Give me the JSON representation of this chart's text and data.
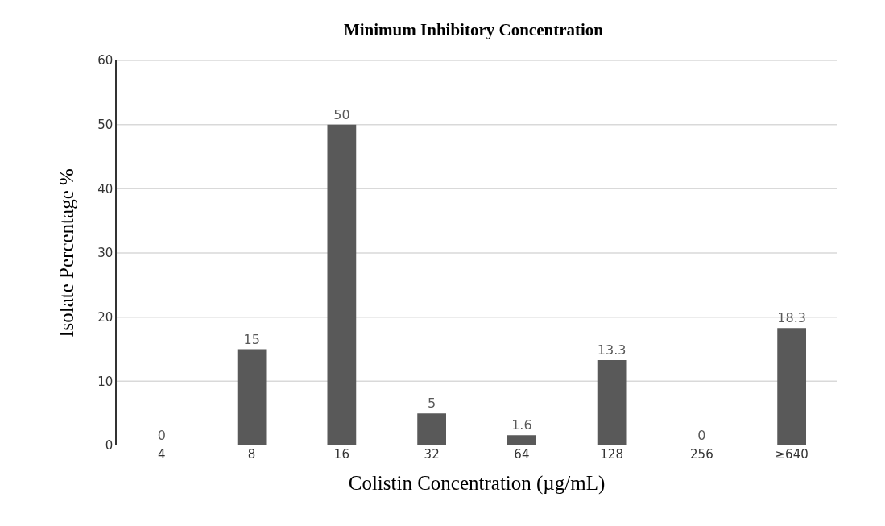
{
  "chart_data": {
    "type": "bar",
    "title": "Minimum Inhibitory Concentration",
    "xlabel": "Colistin Concentration (µg/mL)",
    "ylabel": "Isolate Percentage %",
    "categories": [
      "4",
      "8",
      "16",
      "32",
      "64",
      "128",
      "256",
      "≥640"
    ],
    "values": [
      0,
      15,
      50,
      5,
      1.6,
      13.3,
      0,
      18.3
    ],
    "color": "#595959",
    "ylim": [
      0,
      60
    ],
    "yticks": [
      0,
      10,
      20,
      30,
      40,
      50,
      60
    ],
    "grid": "y",
    "data_labels": true
  }
}
